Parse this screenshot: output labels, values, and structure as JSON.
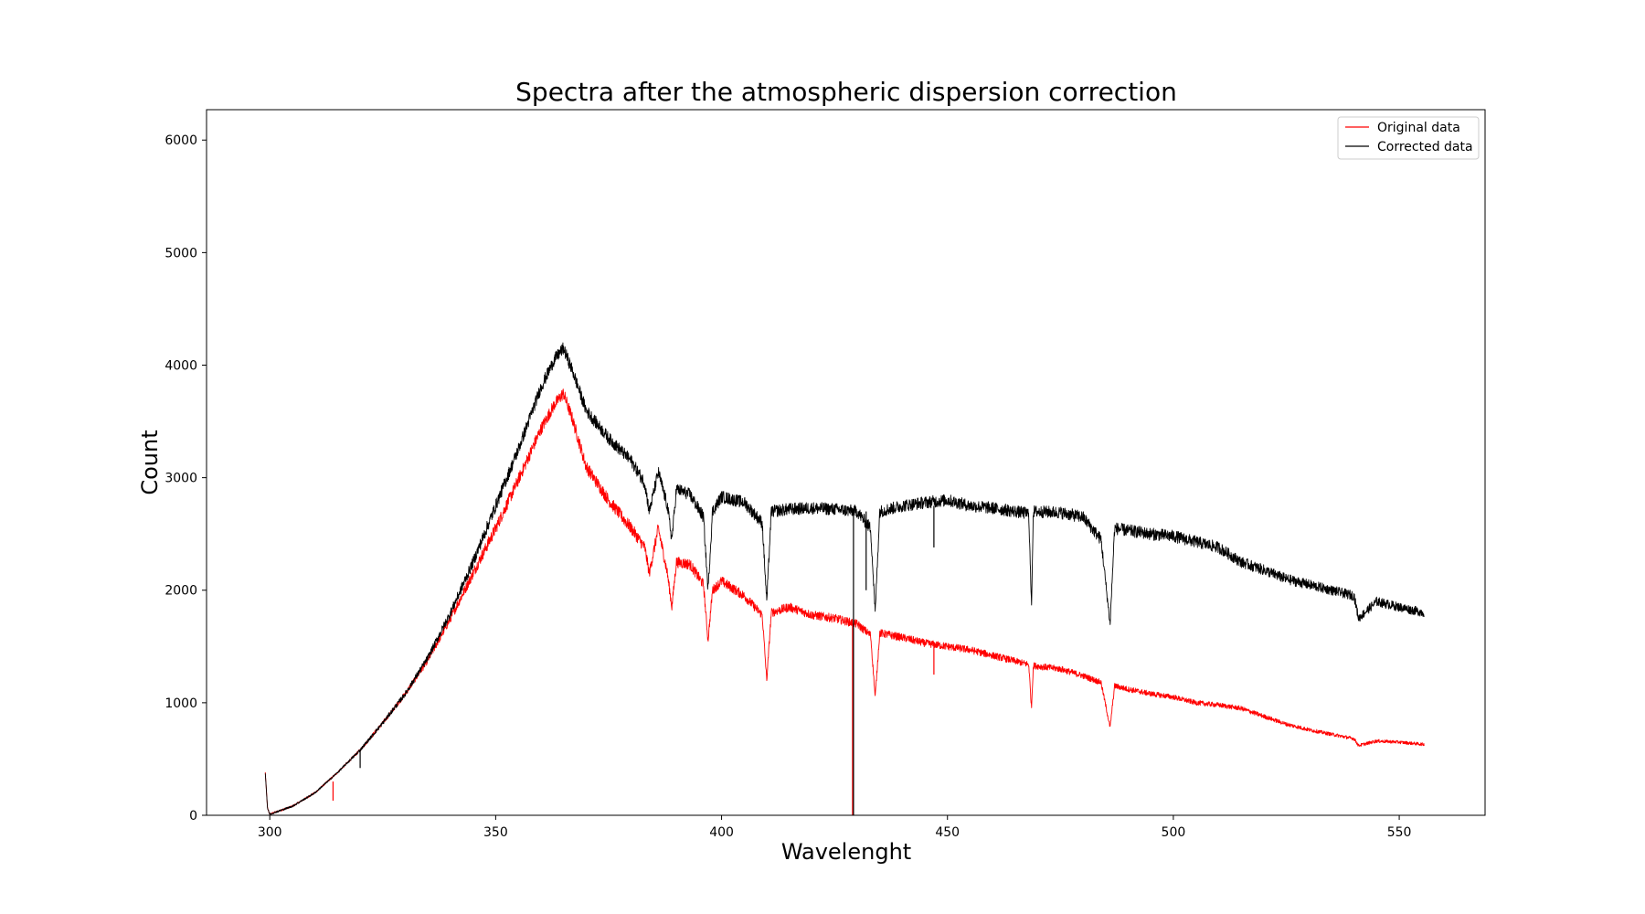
{
  "chart_data": {
    "type": "line",
    "title": "Spectra after the atmospheric dispersion correction",
    "xlabel": "Wavelenght",
    "ylabel": "Count",
    "xlim": [
      286,
      569
    ],
    "ylim": [
      0,
      6270
    ],
    "x_ticks": [
      300,
      350,
      400,
      450,
      500,
      550
    ],
    "y_ticks": [
      0,
      1000,
      2000,
      3000,
      4000,
      5000,
      6000
    ],
    "grid": false,
    "legend_position": "upper right",
    "series": [
      {
        "name": "Original data",
        "color": "#ff0000",
        "noise": 55,
        "x": [
          299,
          299.5,
          300,
          305,
          310,
          315,
          320,
          325,
          330,
          335,
          340,
          345,
          350,
          355,
          360,
          363,
          365,
          367,
          370,
          375,
          380,
          383,
          384,
          386,
          388,
          389,
          390,
          393,
          396,
          397,
          398,
          400,
          405,
          409,
          410,
          411,
          415,
          420,
          425,
          430,
          433,
          434,
          435,
          440,
          445,
          450,
          455,
          460,
          465,
          468,
          468.6,
          469,
          475,
          480,
          484,
          486,
          487,
          490,
          495,
          500,
          505,
          510,
          515,
          520,
          525,
          530,
          535,
          540,
          541,
          545,
          550,
          555.5
        ],
        "y": [
          380,
          60,
          10,
          80,
          200,
          380,
          580,
          820,
          1080,
          1380,
          1750,
          2150,
          2550,
          2980,
          3430,
          3650,
          3750,
          3520,
          3100,
          2800,
          2550,
          2380,
          2150,
          2550,
          2150,
          1850,
          2250,
          2230,
          2050,
          1550,
          2000,
          2080,
          1950,
          1780,
          1200,
          1800,
          1850,
          1780,
          1750,
          1700,
          1600,
          1050,
          1620,
          1580,
          1530,
          1500,
          1470,
          1420,
          1370,
          1340,
          950,
          1330,
          1300,
          1240,
          1180,
          780,
          1150,
          1120,
          1080,
          1050,
          1000,
          980,
          950,
          880,
          810,
          760,
          720,
          680,
          620,
          660,
          650,
          630
        ]
      },
      {
        "name": "Corrected data",
        "color": "#000000",
        "noise": 55,
        "x": [
          299,
          299.5,
          300,
          305,
          310,
          315,
          320,
          325,
          330,
          335,
          340,
          345,
          350,
          355,
          360,
          363,
          365,
          367,
          370,
          375,
          380,
          383,
          384,
          386,
          388,
          389,
          390,
          393,
          396,
          397,
          398,
          400,
          405,
          409,
          410,
          411,
          415,
          420,
          425,
          430,
          433,
          434,
          435,
          440,
          445,
          450,
          455,
          460,
          465,
          468,
          468.6,
          469,
          475,
          480,
          484,
          486,
          487,
          490,
          495,
          500,
          505,
          510,
          515,
          520,
          525,
          530,
          535,
          540,
          541,
          545,
          550,
          555.5
        ],
        "y": [
          380,
          60,
          10,
          80,
          200,
          380,
          580,
          820,
          1080,
          1400,
          1800,
          2250,
          2750,
          3250,
          3800,
          4050,
          4150,
          3950,
          3600,
          3350,
          3150,
          2950,
          2700,
          3050,
          2750,
          2450,
          2900,
          2850,
          2650,
          2000,
          2700,
          2830,
          2780,
          2600,
          1900,
          2700,
          2720,
          2730,
          2720,
          2700,
          2550,
          1800,
          2700,
          2750,
          2780,
          2800,
          2750,
          2730,
          2700,
          2680,
          1850,
          2700,
          2690,
          2650,
          2450,
          1700,
          2550,
          2530,
          2500,
          2480,
          2430,
          2380,
          2250,
          2180,
          2100,
          2050,
          2000,
          1950,
          1750,
          1900,
          1850,
          1800
        ]
      }
    ],
    "spikes": [
      {
        "x": 314,
        "from": 300,
        "to": 130,
        "color": "#ff0000"
      },
      {
        "x": 320,
        "from": 580,
        "to": 420,
        "color": "#000000"
      },
      {
        "x": 429,
        "from": 1700,
        "to": 0,
        "color": "#ff0000"
      },
      {
        "x": 429.2,
        "from": 2720,
        "to": 0,
        "color": "#000000"
      },
      {
        "x": 432,
        "from": 2700,
        "to": 2000,
        "color": "#000000"
      },
      {
        "x": 447,
        "from": 2750,
        "to": 2380,
        "color": "#000000"
      },
      {
        "x": 447,
        "from": 1530,
        "to": 1250,
        "color": "#ff0000"
      }
    ]
  }
}
